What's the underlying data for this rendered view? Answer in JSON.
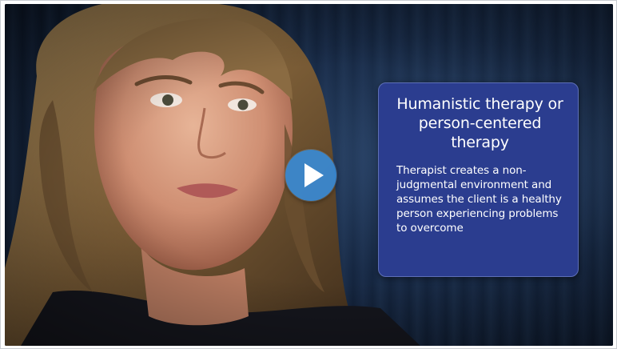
{
  "player": {
    "info_title": "Humanistic therapy or person-centered therapy",
    "info_body": "Therapist creates a non-judgmental environment and assumes the client is a healthy person experiencing problems to overcome",
    "play_icon": "play-icon",
    "accent": "#3a8ad4",
    "panel_color": "#2b3d8f"
  }
}
